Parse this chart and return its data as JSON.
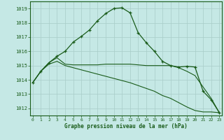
{
  "background_color": "#c5e8e5",
  "grid_color": "#a8ccc8",
  "line_color": "#1a5c1a",
  "xlabel": "Graphe pression niveau de la mer (hPa)",
  "ylim": [
    1011.5,
    1019.5
  ],
  "xlim": [
    -0.3,
    23.3
  ],
  "yticks": [
    1012,
    1013,
    1014,
    1015,
    1016,
    1017,
    1018,
    1019
  ],
  "xticks": [
    0,
    1,
    2,
    3,
    4,
    5,
    6,
    7,
    8,
    9,
    10,
    11,
    12,
    13,
    14,
    15,
    16,
    17,
    18,
    19,
    20,
    21,
    22,
    23
  ],
  "curve_x": [
    0,
    1,
    2,
    3,
    4,
    5,
    6,
    7,
    8,
    9,
    10,
    11,
    12,
    13,
    14,
    15,
    16,
    17,
    18,
    19,
    20,
    21,
    22,
    23
  ],
  "curve_y": [
    1013.8,
    1014.6,
    1015.2,
    1015.65,
    1016.0,
    1016.65,
    1017.05,
    1017.5,
    1018.15,
    1018.65,
    1019.0,
    1019.05,
    1018.7,
    1017.3,
    1016.6,
    1016.0,
    1015.3,
    1015.0,
    1014.9,
    1014.95,
    1014.9,
    1013.2,
    1012.6,
    1011.7
  ],
  "flat_x": [
    0,
    1,
    2,
    3,
    4,
    5,
    6,
    7,
    8,
    9,
    10,
    11,
    12,
    13,
    14,
    15,
    16,
    17,
    18,
    19,
    20,
    21,
    22,
    23
  ],
  "flat_y": [
    1013.8,
    1014.6,
    1015.2,
    1015.55,
    1015.1,
    1015.05,
    1015.05,
    1015.05,
    1015.05,
    1015.1,
    1015.1,
    1015.1,
    1015.1,
    1015.05,
    1015.0,
    1015.0,
    1015.0,
    1015.0,
    1014.85,
    1014.6,
    1014.3,
    1013.5,
    1012.7,
    1011.7
  ],
  "decline_x": [
    0,
    1,
    2,
    3,
    4,
    5,
    6,
    7,
    8,
    9,
    10,
    11,
    12,
    13,
    14,
    15,
    16,
    17,
    18,
    19,
    20,
    21,
    22,
    23
  ],
  "decline_y": [
    1013.8,
    1014.6,
    1015.1,
    1015.3,
    1015.0,
    1014.85,
    1014.7,
    1014.55,
    1014.4,
    1014.25,
    1014.1,
    1013.95,
    1013.8,
    1013.6,
    1013.4,
    1013.2,
    1012.9,
    1012.7,
    1012.4,
    1012.1,
    1011.85,
    1011.75,
    1011.75,
    1011.7
  ]
}
